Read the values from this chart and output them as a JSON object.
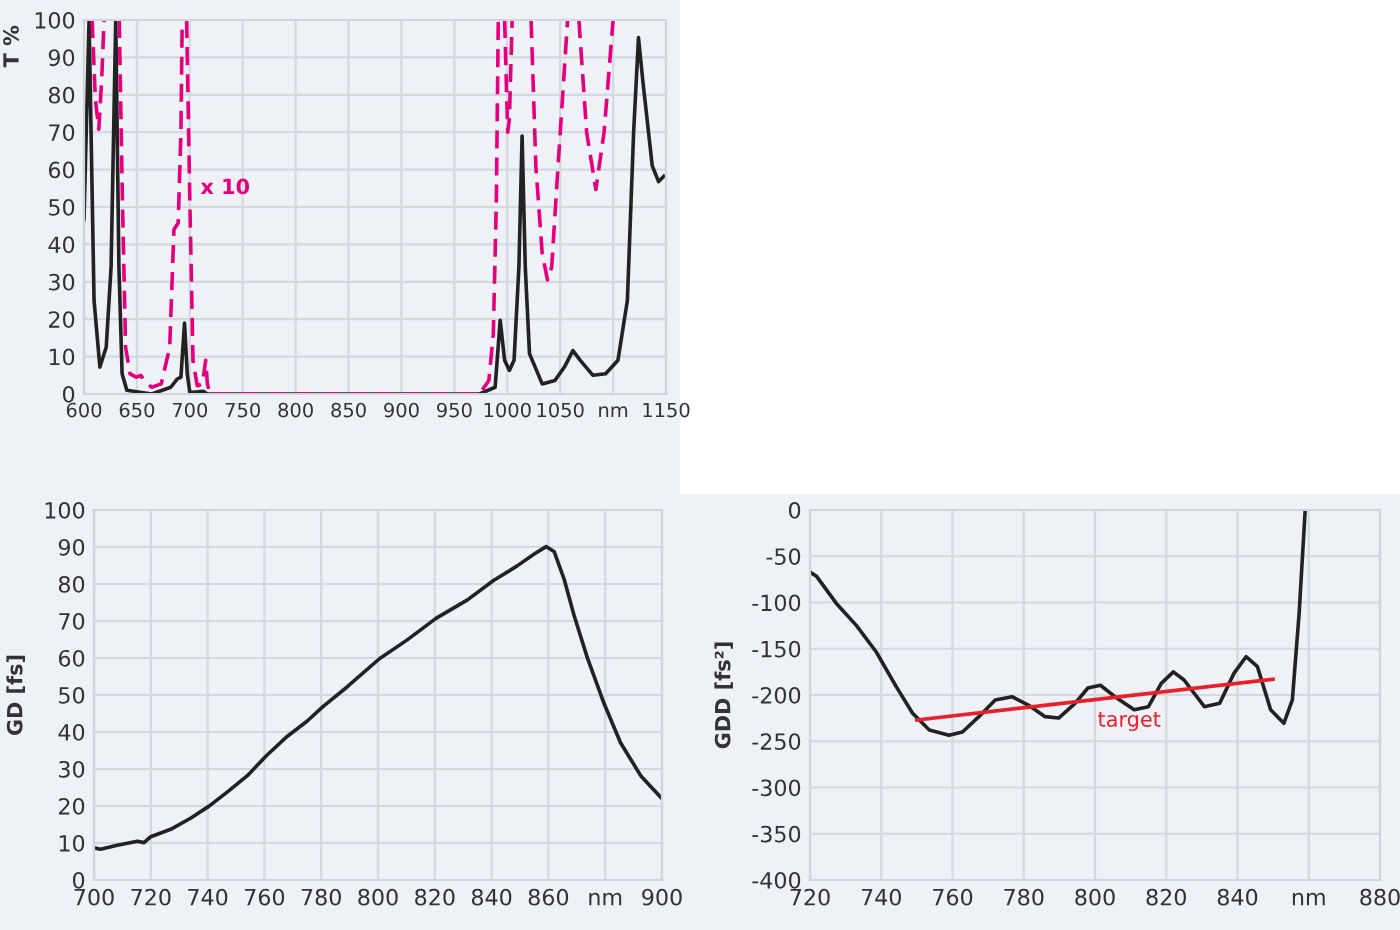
{
  "chart_data": [
    {
      "type": "line",
      "ylabel": "T %",
      "xlim": [
        600,
        1150
      ],
      "ylim": [
        0,
        100
      ],
      "grid": true,
      "tick_labels": true,
      "xticks": [
        600,
        650,
        700,
        750,
        800,
        850,
        900,
        950,
        1000,
        1050,
        {
          "value": 1100,
          "label": "nm"
        },
        1150
      ],
      "yticks": [
        0,
        10,
        20,
        30,
        40,
        50,
        60,
        70,
        80,
        90,
        100
      ],
      "annotations": [
        {
          "text": "x 10",
          "x": 710,
          "y": 55
        }
      ],
      "series": [
        {
          "color": "#222222",
          "line_style": "solid",
          "x": [
            600,
            604.8,
            609.5,
            615,
            621,
            625.6,
            630,
            633,
            636,
            640.5,
            664,
            682,
            688,
            691.6,
            695,
            697.6,
            700,
            713,
            716.6,
            973.7,
            988.5,
            993.3,
            997.5,
            1002,
            1006.4,
            1011,
            1014,
            1017,
            1021,
            1033,
            1045,
            1054,
            1062,
            1069,
            1081,
            1093,
            1104.6,
            1113.5,
            1119.4,
            1124,
            1128,
            1137,
            1143,
            1148
          ],
          "values": [
            46.6,
            100,
            25,
            7.2,
            12.5,
            34,
            100,
            34,
            5.4,
            1,
            0,
            1.8,
            4,
            4.5,
            19,
            5.4,
            0.4,
            0.7,
            0,
            0,
            1.8,
            19.7,
            9,
            6.3,
            9,
            34,
            69,
            34,
            10.8,
            2.7,
            3.6,
            7.2,
            11.6,
            9,
            5,
            5.4,
            9,
            25,
            70,
            95.3,
            84,
            61,
            56.8,
            58.2
          ]
        },
        {
          "color": "#e6007e",
          "line_style": "dashed",
          "x": [
            607.7,
            610.7,
            614,
            616.7,
            619,
            626,
            633.3,
            636.3,
            639.3,
            643.5,
            649.4,
            653.6,
            658,
            664,
            673,
            681,
            685,
            689,
            691.6,
            692.8,
            695,
            697,
            700,
            703,
            707,
            712,
            715,
            716.6,
            719,
            973.7,
            982.6,
            986.8,
            989.7,
            991.5,
            994,
            997.5,
            1000.4,
            1002,
            1004.6,
            1013,
            1022.5,
            1027,
            1033,
            1038,
            1042,
            1048,
            1057,
            1062,
            1067.7,
            1075,
            1083.7,
            1091.5,
            1100
          ],
          "values": [
            100,
            78.9,
            70.8,
            84,
            100,
            null,
            100,
            52,
            12.5,
            5.4,
            4.5,
            5,
            3.2,
            1.8,
            2.7,
            12.5,
            44,
            45.7,
            70,
            100,
            null,
            100,
            52,
            9,
            2.2,
            2.7,
            9,
            2.7,
            0,
            0,
            3.6,
            16,
            52,
            100,
            null,
            100,
            70,
            73.5,
            100,
            null,
            100,
            61,
            37.6,
            30.5,
            34,
            61,
            100,
            null,
            100,
            70,
            54.7,
            70,
            100
          ]
        }
      ]
    },
    {
      "type": "line",
      "ylabel": "GD [fs]",
      "xlim": [
        700,
        900
      ],
      "ylim": [
        0,
        100
      ],
      "grid": true,
      "xticks": [
        700,
        720,
        740,
        760,
        780,
        800,
        820,
        840,
        860,
        {
          "value": 880,
          "label": "nm"
        },
        900
      ],
      "yticks": [
        0,
        10,
        20,
        30,
        40,
        50,
        60,
        70,
        80,
        90,
        100
      ],
      "series": [
        {
          "color": "#222222",
          "line_style": "solid",
          "x": [
            700,
            702.3,
            708.2,
            715.3,
            717.6,
            720,
            727,
            734,
            740.4,
            747,
            754,
            760.6,
            768,
            775,
            780.5,
            789,
            800.5,
            810.3,
            820.4,
            831.5,
            840.8,
            849,
            855,
            859.2,
            862,
            865.5,
            869,
            873.7,
            879.6,
            885.4,
            892.5,
            900
          ],
          "values": [
            8.7,
            8.3,
            9.4,
            10.5,
            10.1,
            11.7,
            13.7,
            16.7,
            19.9,
            23.8,
            28.2,
            33.5,
            38.8,
            42.9,
            46.8,
            52.1,
            59.8,
            64.9,
            70.7,
            75.7,
            81,
            84.9,
            88.1,
            90.1,
            88.8,
            81.4,
            71.6,
            60.1,
            47.7,
            37.1,
            28.2,
            22
          ]
        }
      ]
    },
    {
      "type": "line",
      "ylabel": "GDD [fs²]",
      "xlim": [
        720,
        880
      ],
      "ylim": [
        -400,
        0
      ],
      "grid": true,
      "xticks": [
        720,
        740,
        760,
        780,
        800,
        820,
        840,
        {
          "value": 860,
          "label": "nm"
        },
        880
      ],
      "yticks": [
        -400,
        -350,
        -300,
        -250,
        -200,
        -150,
        -100,
        -50,
        0
      ],
      "annotations": [
        "target"
      ],
      "series": [
        {
          "color": "#222222",
          "line_style": "solid",
          "x": [
            720,
            721.9,
            727.4,
            733,
            738.6,
            744.2,
            748.8,
            753.5,
            759,
            762.8,
            767.4,
            772,
            776.7,
            781.4,
            786,
            789.8,
            794.4,
            798,
            801.5,
            805.6,
            811,
            815,
            818.6,
            822,
            825,
            830.7,
            835,
            839,
            842.4,
            845.6,
            849.3,
            853,
            855.4,
            857.3,
            859
          ],
          "values": [
            -67,
            -72,
            -101,
            -124.7,
            -153.5,
            -191,
            -219.8,
            -237.8,
            -243.6,
            -240,
            -223.4,
            -205.4,
            -201.8,
            -211.2,
            -223.4,
            -224.9,
            -209,
            -192.4,
            -189.5,
            -201.8,
            -216,
            -212.6,
            -187.4,
            -175,
            -183.8,
            -212.6,
            -209,
            -176.6,
            -158.6,
            -169.4,
            -216,
            -230.6,
            -205.4,
            -111.7,
            0
          ]
        },
        {
          "color": "#e8202a",
          "line_style": "solid",
          "x": [
            750,
            850
          ],
          "values": [
            -227,
            -183
          ]
        }
      ]
    }
  ]
}
